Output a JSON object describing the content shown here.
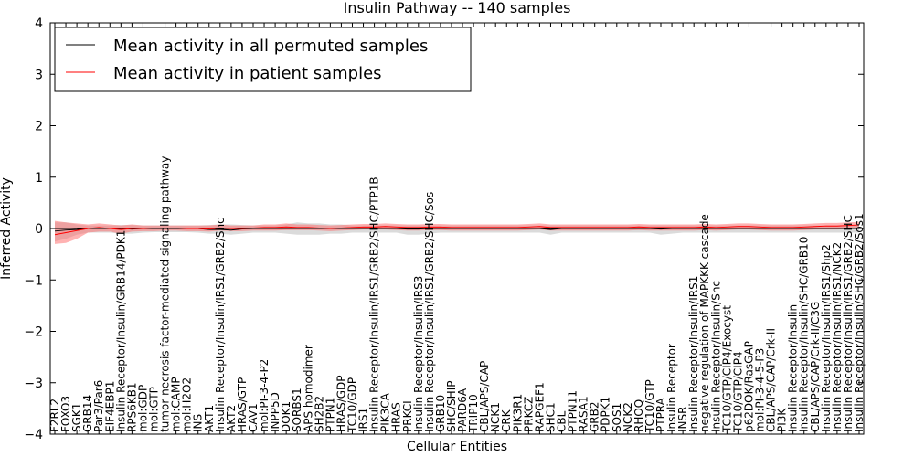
{
  "chart_data": {
    "type": "line",
    "title": "Insulin Pathway -- 140 samples",
    "xlabel": "Cellular Entities",
    "ylabel": "Inferred Activity",
    "ylim": [
      -4,
      4
    ],
    "yticks": [
      "4",
      "3",
      "2",
      "1",
      "0",
      "−1",
      "−2",
      "−3",
      "−4"
    ],
    "ytick_values": [
      4,
      3,
      2,
      1,
      0,
      -1,
      -2,
      -3,
      -4
    ],
    "legend": {
      "placement": "top-left",
      "entries": [
        {
          "label": "Mean activity in all permuted samples",
          "color": "#000000"
        },
        {
          "label": "Mean activity in patient samples",
          "color": "#ff0000"
        }
      ]
    },
    "colors": {
      "permuted_line": "#000000",
      "patient_line": "#ff0000",
      "permuted_band": "#b0b0b0",
      "patient_band": "#ff6666"
    },
    "categories": [
      "F2RL2",
      "FOXO3",
      "SGK1",
      "GRB14",
      "Par3/Par6",
      "EIF4EBP1",
      "Insulin Receptor/Insulin/GRB14/PDK1",
      "RPS6KB1",
      "mol:GDP",
      "mol:GTP",
      "tumor necrosis factor-mediated signaling pathway",
      "mol:CAMP",
      "mol:H2O2",
      "INS",
      "AKT1",
      "Insulin Receptor/Insulin/IRS1/GRB2/Shc",
      "AKT2",
      "HRAS/GTP",
      "CAV1",
      "mol:PI-3-4-P2",
      "INPP5D",
      "DOK1",
      "SORBS1",
      "APS homodimer",
      "SH2B2",
      "PTPN1",
      "HRAS/GDP",
      "TC10/GDP",
      "IRS1",
      "Insulin Receptor/Insulin/IRS1/GRB2/SHC/PTP1B",
      "PIK3CA",
      "HRAS",
      "PRKCI",
      "Insulin Receptor/Insulin/IRS3",
      "Insulin Receptor/Insulin/IRS1/GRB2/SHC/Sos",
      "GRB10",
      "SHC/SHIP",
      "PARD6A",
      "TRIP10",
      "CBL/APS/CAP",
      "NCK1",
      "CRK",
      "PIK3R1",
      "PRKCZ",
      "RAPGEF1",
      "SHC1",
      "CBL",
      "PTPN11",
      "RASA1",
      "GRB2",
      "PDPK1",
      "SOS1",
      "NCK2",
      "RHOQ",
      "TC10/GTP",
      "PTPRA",
      "Insulin Receptor",
      "INSR",
      "Insulin Receptor/Insulin/IRS1",
      "negative regulation of MAPKKK cascade",
      "Insulin Receptor/Insulin/Shc",
      "TC10/GTP/CIP4/Exocyst",
      "TC10/GTP/CIP4",
      "p62DOK/RasGAP",
      "mol:PI-3-4-5-P3",
      "CBL/APS/CAP/Crk-II",
      "PI3K",
      "Insulin Receptor/Insulin",
      "Insulin Receptor/Insulin/SHC/GRB10",
      "CBL/APS/CAP/Crk-II/C3G",
      "Insulin Receptor/Insulin/IRS1/Shp2",
      "Insulin Receptor/Insulin/IRS1/NCK2",
      "Insulin Receptor/Insulin/IRS1/GRB2/SHC",
      "Insulin Receptor/Insulin/SHC/GRB2/Sos1"
    ],
    "series": [
      {
        "name": "Mean activity in all permuted samples",
        "values": [
          -0.05,
          -0.03,
          -0.02,
          0.0,
          0.0,
          0.0,
          0.0,
          -0.01,
          0.0,
          0.0,
          0.0,
          0.0,
          0.0,
          0.0,
          -0.02,
          -0.02,
          -0.03,
          -0.01,
          0.0,
          0.0,
          0.0,
          0.0,
          0.0,
          0.0,
          0.0,
          0.0,
          0.0,
          0.0,
          0.0,
          0.0,
          0.0,
          0.0,
          -0.01,
          -0.01,
          0.0,
          0.0,
          0.0,
          0.0,
          0.0,
          0.0,
          0.0,
          0.0,
          0.0,
          0.0,
          0.0,
          -0.02,
          0.0,
          0.0,
          0.0,
          0.0,
          0.0,
          0.0,
          0.0,
          0.0,
          0.0,
          -0.01,
          0.0,
          0.0,
          0.0,
          0.0,
          0.0,
          0.0,
          0.0,
          0.0,
          0.0,
          0.0,
          0.0,
          0.0,
          0.0,
          0.0,
          0.0,
          0.0,
          0.0,
          0.0
        ],
        "lower": [
          -0.25,
          -0.2,
          -0.12,
          -0.08,
          -0.08,
          -0.08,
          -0.1,
          -0.1,
          -0.08,
          -0.07,
          -0.07,
          -0.07,
          -0.07,
          -0.08,
          -0.1,
          -0.1,
          -0.12,
          -0.1,
          -0.08,
          -0.08,
          -0.08,
          -0.1,
          -0.12,
          -0.12,
          -0.12,
          -0.1,
          -0.1,
          -0.08,
          -0.08,
          -0.08,
          -0.08,
          -0.08,
          -0.12,
          -0.12,
          -0.1,
          -0.08,
          -0.08,
          -0.08,
          -0.08,
          -0.08,
          -0.08,
          -0.08,
          -0.08,
          -0.08,
          -0.08,
          -0.12,
          -0.08,
          -0.08,
          -0.08,
          -0.08,
          -0.08,
          -0.08,
          -0.08,
          -0.08,
          -0.08,
          -0.12,
          -0.1,
          -0.08,
          -0.08,
          -0.08,
          -0.08,
          -0.08,
          -0.08,
          -0.08,
          -0.08,
          -0.08,
          -0.08,
          -0.08,
          -0.08,
          -0.08,
          -0.08,
          -0.08,
          -0.08,
          -0.08
        ],
        "upper": [
          0.12,
          0.12,
          0.08,
          0.06,
          0.06,
          0.06,
          0.07,
          0.07,
          0.06,
          0.06,
          0.06,
          0.06,
          0.06,
          0.06,
          0.07,
          0.08,
          0.08,
          0.07,
          0.06,
          0.06,
          0.06,
          0.08,
          0.12,
          0.1,
          0.1,
          0.08,
          0.08,
          0.06,
          0.06,
          0.06,
          0.06,
          0.06,
          0.06,
          0.06,
          0.06,
          0.06,
          0.06,
          0.06,
          0.06,
          0.06,
          0.06,
          0.06,
          0.06,
          0.06,
          0.06,
          0.06,
          0.06,
          0.06,
          0.06,
          0.06,
          0.06,
          0.06,
          0.06,
          0.06,
          0.06,
          0.06,
          0.06,
          0.06,
          0.06,
          0.06,
          0.06,
          0.06,
          0.06,
          0.06,
          0.06,
          0.06,
          0.06,
          0.06,
          0.06,
          0.06,
          0.06,
          0.06,
          0.06,
          0.06
        ]
      },
      {
        "name": "Mean activity in patient samples",
        "values": [
          -0.12,
          -0.08,
          -0.04,
          0.0,
          0.02,
          0.0,
          -0.02,
          0.0,
          0.0,
          0.01,
          0.01,
          0.01,
          0.0,
          0.0,
          -0.01,
          0.01,
          0.0,
          0.0,
          0.01,
          0.02,
          0.02,
          0.03,
          0.02,
          0.02,
          0.01,
          0.0,
          0.01,
          0.02,
          0.03,
          0.03,
          0.04,
          0.03,
          0.02,
          0.02,
          0.03,
          0.03,
          0.02,
          0.02,
          0.02,
          0.02,
          0.02,
          0.02,
          0.02,
          0.03,
          0.04,
          0.02,
          0.02,
          0.02,
          0.02,
          0.02,
          0.02,
          0.02,
          0.02,
          0.03,
          0.02,
          0.02,
          0.02,
          0.02,
          0.02,
          0.03,
          0.02,
          0.03,
          0.04,
          0.04,
          0.03,
          0.02,
          0.02,
          0.02,
          0.03,
          0.04,
          0.05,
          0.05,
          0.06,
          0.07
        ],
        "lower": [
          -0.3,
          -0.28,
          -0.2,
          -0.08,
          -0.06,
          -0.06,
          -0.1,
          -0.06,
          -0.05,
          -0.05,
          -0.04,
          -0.04,
          -0.05,
          -0.05,
          -0.06,
          -0.04,
          -0.05,
          -0.05,
          -0.04,
          -0.04,
          -0.04,
          -0.03,
          -0.03,
          -0.03,
          -0.04,
          -0.05,
          -0.04,
          -0.03,
          -0.02,
          -0.02,
          -0.02,
          -0.03,
          -0.04,
          -0.04,
          -0.03,
          -0.03,
          -0.04,
          -0.04,
          -0.04,
          -0.04,
          -0.04,
          -0.04,
          -0.04,
          -0.03,
          -0.02,
          -0.04,
          -0.04,
          -0.04,
          -0.04,
          -0.04,
          -0.04,
          -0.04,
          -0.04,
          -0.03,
          -0.04,
          -0.04,
          -0.04,
          -0.04,
          -0.04,
          -0.03,
          -0.04,
          -0.03,
          -0.02,
          -0.02,
          -0.03,
          -0.04,
          -0.04,
          -0.04,
          -0.03,
          -0.02,
          -0.02,
          -0.02,
          -0.01,
          0.0
        ],
        "upper": [
          0.15,
          0.12,
          0.1,
          0.08,
          0.1,
          0.08,
          0.06,
          0.08,
          0.06,
          0.06,
          0.06,
          0.06,
          0.06,
          0.06,
          0.06,
          0.08,
          0.06,
          0.06,
          0.06,
          0.08,
          0.08,
          0.1,
          0.08,
          0.08,
          0.07,
          0.06,
          0.07,
          0.08,
          0.09,
          0.09,
          0.1,
          0.09,
          0.08,
          0.08,
          0.09,
          0.09,
          0.08,
          0.08,
          0.08,
          0.08,
          0.08,
          0.08,
          0.08,
          0.09,
          0.1,
          0.08,
          0.08,
          0.08,
          0.08,
          0.08,
          0.08,
          0.08,
          0.08,
          0.09,
          0.08,
          0.08,
          0.08,
          0.08,
          0.08,
          0.09,
          0.08,
          0.09,
          0.1,
          0.1,
          0.09,
          0.08,
          0.08,
          0.08,
          0.09,
          0.1,
          0.11,
          0.11,
          0.12,
          0.13
        ]
      }
    ]
  }
}
